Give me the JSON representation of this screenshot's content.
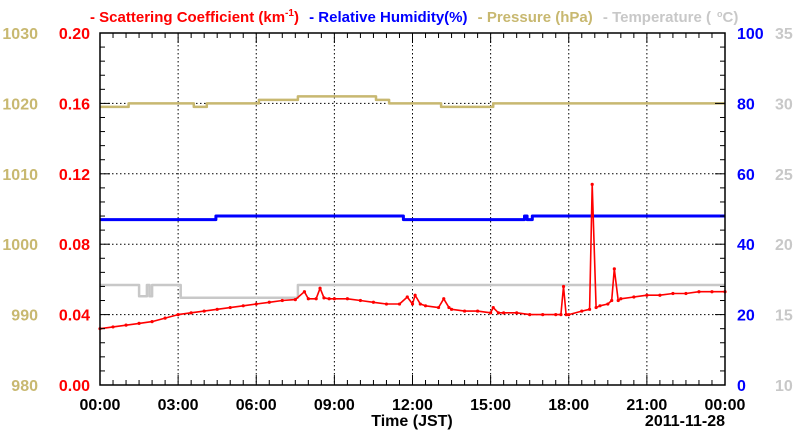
{
  "chart_data": {
    "type": "line",
    "legend": {
      "sep": "-",
      "scat_pre": "Scattering Coefficient (km",
      "scat_sup": "-1",
      "scat_post": ")",
      "rh": "Relative Humidity(%)",
      "pres": "Pressure (hPa)",
      "temp": "Temperature (",
      "temp_unit": "C)"
    },
    "xlabel": "Time (JST)",
    "date_label": "2011-11-28",
    "x_range_hours": [
      0,
      24
    ],
    "x_ticks": [
      "00:00",
      "03:00",
      "06:00",
      "09:00",
      "12:00",
      "15:00",
      "18:00",
      "21:00",
      "00:00"
    ],
    "grid": true,
    "axes": {
      "pressure": {
        "range": [
          980,
          1030
        ],
        "ticks": [
          "980",
          "990",
          "1000",
          "1010",
          "1020",
          "1030"
        ],
        "color": "#c8b870"
      },
      "scattering": {
        "range": [
          0.0,
          0.2
        ],
        "ticks": [
          "0.00",
          "0.04",
          "0.08",
          "0.12",
          "0.16",
          "0.20"
        ],
        "color": "#ff0000"
      },
      "humidity": {
        "range": [
          0,
          100
        ],
        "ticks": [
          "0",
          "20",
          "40",
          "60",
          "80",
          "100"
        ],
        "color": "#0000ff"
      },
      "temperature": {
        "range": [
          10,
          35
        ],
        "ticks": [
          "10",
          "15",
          "20",
          "25",
          "30",
          "35"
        ],
        "color": "#c8c8c8"
      }
    },
    "series": [
      {
        "name": "Scattering Coefficient",
        "axis": "scattering",
        "color": "#ff0000",
        "x": [
          0,
          0.5,
          1,
          1.5,
          2,
          2.5,
          3,
          3.5,
          4,
          4.5,
          5,
          5.5,
          6,
          6.5,
          7,
          7.5,
          7.85,
          8,
          8.3,
          8.45,
          8.6,
          8.8,
          9,
          9.5,
          10,
          10.5,
          11,
          11.5,
          11.8,
          12,
          12.1,
          12.3,
          12.5,
          13,
          13.2,
          13.4,
          13.5,
          14,
          14.5,
          15,
          15.1,
          15.3,
          15.5,
          16,
          16.5,
          17,
          17.5,
          17.7,
          17.8,
          17.9,
          18,
          18.5,
          18.8,
          18.9,
          19.05,
          19.2,
          19.5,
          19.65,
          19.75,
          19.9,
          20,
          20.5,
          21,
          21.5,
          22,
          22.5,
          23,
          23.5,
          24
        ],
        "values": [
          0.032,
          0.033,
          0.034,
          0.035,
          0.036,
          0.038,
          0.04,
          0.041,
          0.042,
          0.043,
          0.044,
          0.045,
          0.046,
          0.047,
          0.048,
          0.0485,
          0.053,
          0.049,
          0.049,
          0.055,
          0.0495,
          0.049,
          0.049,
          0.049,
          0.048,
          0.047,
          0.046,
          0.046,
          0.05,
          0.046,
          0.051,
          0.046,
          0.045,
          0.044,
          0.049,
          0.044,
          0.043,
          0.042,
          0.042,
          0.041,
          0.044,
          0.041,
          0.041,
          0.041,
          0.04,
          0.04,
          0.04,
          0.04,
          0.056,
          0.04,
          0.04,
          0.042,
          0.043,
          0.114,
          0.044,
          0.045,
          0.046,
          0.048,
          0.066,
          0.048,
          0.049,
          0.05,
          0.051,
          0.051,
          0.052,
          0.052,
          0.053,
          0.053,
          0.053
        ]
      },
      {
        "name": "Relative Humidity",
        "axis": "humidity",
        "color": "#0000ff",
        "x": [
          0,
          4.4,
          4.45,
          11.6,
          11.65,
          16.2,
          16.3,
          16.4,
          16.6,
          24
        ],
        "values": [
          47,
          47,
          48,
          48,
          47,
          47,
          48,
          47,
          48,
          48
        ]
      },
      {
        "name": "Pressure",
        "axis": "pressure",
        "color": "#c8b870",
        "x": [
          0,
          1,
          1.1,
          3.5,
          3.6,
          4,
          4.1,
          6,
          6.1,
          7.5,
          7.6,
          10.5,
          10.6,
          11,
          11.1,
          13,
          13.1,
          15,
          15.1,
          24
        ],
        "values": [
          1019.5,
          1019.5,
          1020,
          1020,
          1019.5,
          1019.5,
          1020,
          1020,
          1020.5,
          1020.5,
          1021,
          1021,
          1020.5,
          1020.5,
          1020,
          1020,
          1019.5,
          1019.5,
          1020,
          1020
        ]
      },
      {
        "name": "Temperature",
        "axis": "temperature",
        "color": "#c8c8c8",
        "x": [
          0,
          1.4,
          1.5,
          1.7,
          1.8,
          1.9,
          2.0,
          3.0,
          3.1,
          7.5,
          7.6,
          24
        ],
        "values": [
          17.1,
          17.1,
          16.3,
          16.3,
          17.1,
          16.3,
          17.1,
          17.1,
          16.2,
          16.2,
          17.1,
          17.1
        ]
      }
    ]
  }
}
